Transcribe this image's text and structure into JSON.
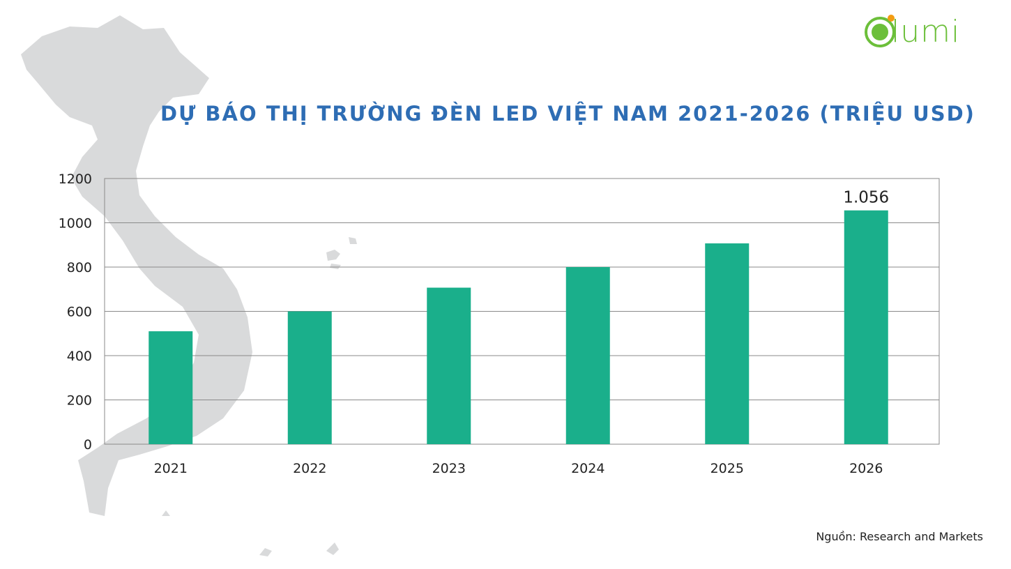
{
  "title": "DỰ BÁO THỊ TRƯỜNG ĐÈN LED VIỆT NAM 2021-2026 (TRIỆU USD)",
  "source": "Nguồn: Research and Markets",
  "logo_text": "lumi",
  "colors": {
    "bar": "#1aaf8b",
    "title": "#2e6db4",
    "map": "#d9dadb",
    "logo_green": "#6cbf3a",
    "logo_orange": "#f39c12"
  },
  "chart_data": {
    "type": "bar",
    "title": "DỰ BÁO THỊ TRƯỜNG ĐÈN LED VIỆT NAM 2021-2026 (TRIỆU USD)",
    "categories": [
      "2021",
      "2022",
      "2023",
      "2024",
      "2025",
      "2026"
    ],
    "values": [
      510,
      600,
      707,
      800,
      907,
      1056
    ],
    "data_labels": [
      "",
      "",
      "",
      "",
      "",
      "1.056"
    ],
    "yticks": [
      "0",
      "200",
      "400",
      "600",
      "800",
      "1000",
      "1200"
    ],
    "ylim": [
      0,
      1200
    ],
    "xlabel": "",
    "ylabel": "",
    "grid": true
  }
}
